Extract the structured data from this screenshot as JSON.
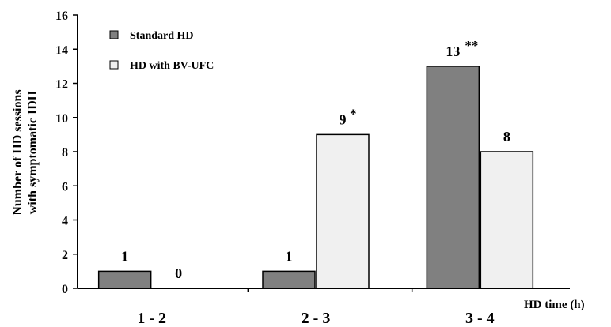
{
  "chart_data": {
    "type": "bar",
    "categories": [
      "1 - 2",
      "2 - 3",
      "3 - 4"
    ],
    "series": [
      {
        "name": "Standard HD",
        "values": [
          1,
          1,
          13
        ],
        "color": "#808080",
        "value_labels": [
          "1",
          "1",
          "13"
        ]
      },
      {
        "name": "HD with BV-UFC",
        "values": [
          0,
          9,
          8
        ],
        "color": "#f0f0f0",
        "value_labels": [
          "0",
          "9",
          "8"
        ]
      }
    ],
    "significance": [
      {
        "series": 1,
        "category": 1,
        "marker": "*"
      },
      {
        "series": 0,
        "category": 2,
        "marker": "**"
      }
    ],
    "xlabel": "HD time (h)",
    "ylabel_lines": [
      "Number of HD sessions",
      "with symptomatic IDH"
    ],
    "ylim": [
      0,
      16
    ],
    "yticks": [
      0,
      2,
      4,
      6,
      8,
      10,
      12,
      14,
      16
    ],
    "grid": false,
    "legend_position": "top-left"
  }
}
